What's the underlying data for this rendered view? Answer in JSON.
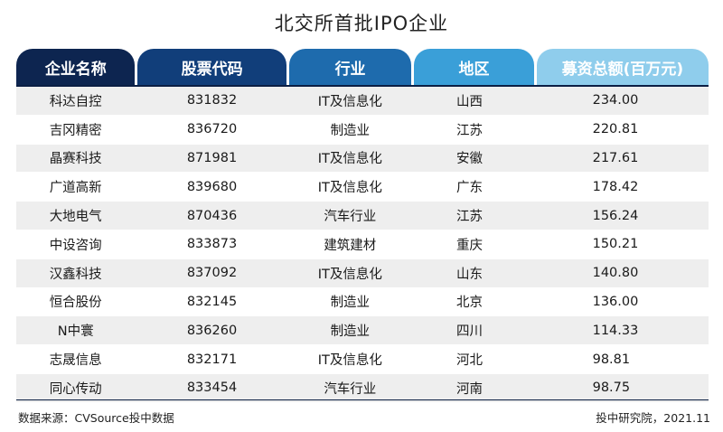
{
  "title": "北交所首批IPO企业",
  "columns": [
    "企业名称",
    "股票代码",
    "行业",
    "地区",
    "募资总额(百万元)"
  ],
  "rows": [
    [
      "科达自控",
      "831832",
      "IT及信息化",
      "山西",
      "234.00"
    ],
    [
      "吉冈精密",
      "836720",
      "制造业",
      "江苏",
      "220.81"
    ],
    [
      "晶赛科技",
      "871981",
      "IT及信息化",
      "安徽",
      "217.61"
    ],
    [
      "广道高新",
      "839680",
      "IT及信息化",
      "广东",
      "178.42"
    ],
    [
      "大地电气",
      "870436",
      "汽车行业",
      "江苏",
      "156.24"
    ],
    [
      "中设咨询",
      "833873",
      "建筑建材",
      "重庆",
      "150.21"
    ],
    [
      "汉鑫科技",
      "837092",
      "IT及信息化",
      "山东",
      "140.80"
    ],
    [
      "恒合股份",
      "832145",
      "制造业",
      "北京",
      "136.00"
    ],
    [
      "N中寰",
      "836260",
      "制造业",
      "四川",
      "114.33"
    ],
    [
      "志晟信息",
      "832171",
      "IT及信息化",
      "河北",
      "98.81"
    ],
    [
      "同心传动",
      "833454",
      "汽车行业",
      "河南",
      "98.75"
    ]
  ],
  "footer": {
    "source": "数据来源：CVSource投中数据",
    "credit": "投中研究院，2021.11"
  }
}
